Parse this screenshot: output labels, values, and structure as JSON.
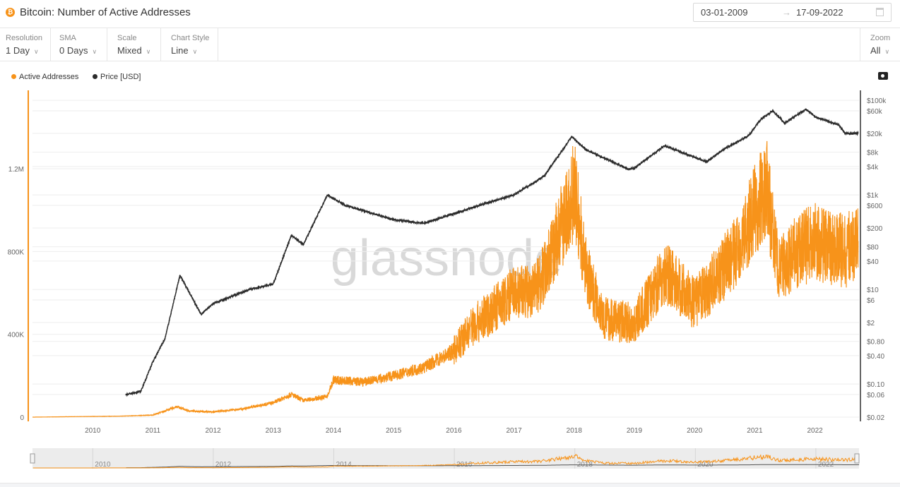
{
  "header": {
    "title": "Bitcoin: Number of Active Addresses",
    "icon": "bitcoin-icon",
    "date_from": "03-01-2009",
    "date_arrow": "→",
    "date_to": "17-09-2022"
  },
  "toolbar": {
    "resolution": {
      "label": "Resolution",
      "value": "1 Day"
    },
    "sma": {
      "label": "SMA",
      "value": "0 Days"
    },
    "scale": {
      "label": "Scale",
      "value": "Mixed"
    },
    "chart_style": {
      "label": "Chart Style",
      "value": "Line"
    },
    "zoom": {
      "label": "Zoom",
      "value": "All"
    }
  },
  "watermark": "glassnode",
  "colors": {
    "addresses": "#f7931a",
    "price": "#2b2b2b"
  },
  "chart_data": {
    "type": "line",
    "title": "Bitcoin: Number of Active Addresses",
    "legend": [
      {
        "name": "Active Addresses",
        "color": "#f7931a"
      },
      {
        "name": "Price [USD]",
        "color": "#2b2b2b"
      }
    ],
    "legend_placement": "top-left",
    "x_range": [
      2009.0,
      2022.72
    ],
    "x_ticks": [
      "2010",
      "2011",
      "2012",
      "2013",
      "2014",
      "2015",
      "2016",
      "2017",
      "2018",
      "2019",
      "2020",
      "2021",
      "2022"
    ],
    "y_left": {
      "scale": "linear",
      "range": [
        0,
        1500000
      ],
      "ticks": [
        {
          "v": 0,
          "label": "0"
        },
        {
          "v": 400000,
          "label": "400K"
        },
        {
          "v": 800000,
          "label": "800K"
        },
        {
          "v": 1200000,
          "label": "1.2M"
        }
      ]
    },
    "y_right": {
      "scale": "log",
      "range": [
        0.02,
        100000
      ],
      "ticks": [
        {
          "v": 100000,
          "label": "$100k"
        },
        {
          "v": 60000,
          "label": "$60k"
        },
        {
          "v": 20000,
          "label": "$20k"
        },
        {
          "v": 8000,
          "label": "$8k"
        },
        {
          "v": 4000,
          "label": "$4k"
        },
        {
          "v": 1000,
          "label": "$1k"
        },
        {
          "v": 600,
          "label": "$600"
        },
        {
          "v": 200,
          "label": "$200"
        },
        {
          "v": 80,
          "label": "$80"
        },
        {
          "v": 40,
          "label": "$40"
        },
        {
          "v": 10,
          "label": "$10"
        },
        {
          "v": 6,
          "label": "$6"
        },
        {
          "v": 2,
          "label": "$2"
        },
        {
          "v": 0.8,
          "label": "$0.80"
        },
        {
          "v": 0.4,
          "label": "$0.40"
        },
        {
          "v": 0.1,
          "label": "$0.10"
        },
        {
          "v": 0.06,
          "label": "$0.06"
        },
        {
          "v": 0.02,
          "label": "$0.02"
        }
      ]
    },
    "series": [
      {
        "name": "Active Addresses",
        "axis": "left",
        "points": [
          [
            2009.0,
            0
          ],
          [
            2010.5,
            5000
          ],
          [
            2011.0,
            10000
          ],
          [
            2011.4,
            50000
          ],
          [
            2011.6,
            30000
          ],
          [
            2012.0,
            25000
          ],
          [
            2012.5,
            40000
          ],
          [
            2013.0,
            70000
          ],
          [
            2013.3,
            110000
          ],
          [
            2013.5,
            80000
          ],
          [
            2013.9,
            100000
          ],
          [
            2014.0,
            180000
          ],
          [
            2014.5,
            170000
          ],
          [
            2015.0,
            200000
          ],
          [
            2015.5,
            240000
          ],
          [
            2016.0,
            320000
          ],
          [
            2016.3,
            440000
          ],
          [
            2016.5,
            480000
          ],
          [
            2017.0,
            600000
          ],
          [
            2017.3,
            600000
          ],
          [
            2017.5,
            700000
          ],
          [
            2017.9,
            1000000
          ],
          [
            2018.0,
            1100000
          ],
          [
            2018.2,
            700000
          ],
          [
            2018.5,
            480000
          ],
          [
            2019.0,
            450000
          ],
          [
            2019.5,
            700000
          ],
          [
            2020.0,
            550000
          ],
          [
            2020.3,
            650000
          ],
          [
            2020.7,
            800000
          ],
          [
            2021.0,
            1000000
          ],
          [
            2021.2,
            1100000
          ],
          [
            2021.4,
            700000
          ],
          [
            2021.7,
            800000
          ],
          [
            2022.0,
            850000
          ],
          [
            2022.5,
            800000
          ],
          [
            2022.72,
            850000
          ]
        ]
      },
      {
        "name": "Price [USD]",
        "axis": "right",
        "points": [
          [
            2010.55,
            0.06
          ],
          [
            2010.8,
            0.07
          ],
          [
            2011.0,
            0.3
          ],
          [
            2011.2,
            0.9
          ],
          [
            2011.45,
            20
          ],
          [
            2011.8,
            3
          ],
          [
            2012.0,
            5
          ],
          [
            2012.6,
            10
          ],
          [
            2013.0,
            13
          ],
          [
            2013.3,
            140
          ],
          [
            2013.5,
            90
          ],
          [
            2013.9,
            1000
          ],
          [
            2014.2,
            600
          ],
          [
            2015.0,
            300
          ],
          [
            2015.5,
            250
          ],
          [
            2016.0,
            400
          ],
          [
            2016.5,
            650
          ],
          [
            2017.0,
            1000
          ],
          [
            2017.5,
            2500
          ],
          [
            2017.96,
            17000
          ],
          [
            2018.2,
            9000
          ],
          [
            2018.9,
            3500
          ],
          [
            2019.0,
            3700
          ],
          [
            2019.5,
            11000
          ],
          [
            2020.2,
            5000
          ],
          [
            2020.5,
            9500
          ],
          [
            2020.9,
            18000
          ],
          [
            2021.1,
            40000
          ],
          [
            2021.3,
            60000
          ],
          [
            2021.5,
            33000
          ],
          [
            2021.85,
            65000
          ],
          [
            2022.0,
            45000
          ],
          [
            2022.4,
            30000
          ],
          [
            2022.5,
            20000
          ],
          [
            2022.72,
            20000
          ]
        ]
      }
    ],
    "navigator_ticks": [
      "2010",
      "2012",
      "2014",
      "2016",
      "2018",
      "2020",
      "2022"
    ]
  }
}
